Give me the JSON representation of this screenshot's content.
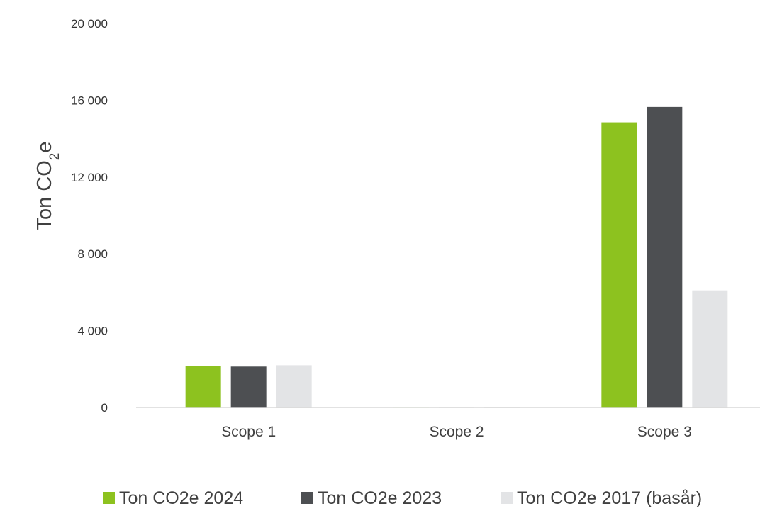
{
  "chart_data": {
    "type": "bar",
    "title": "",
    "xlabel": "",
    "ylabel": "Ton CO2e",
    "ylabel_parts": {
      "main": "Ton CO",
      "sub": "2",
      "tail": "e"
    },
    "categories": [
      "Scope 1",
      "Scope 2",
      "Scope 3"
    ],
    "series": [
      {
        "name": "Ton CO2e 2024",
        "color": "#8dc21f",
        "values": [
          2150,
          20,
          14850
        ]
      },
      {
        "name": "Ton CO2e 2023",
        "color": "#4d4f52",
        "values": [
          2130,
          20,
          15650
        ]
      },
      {
        "name": "Ton CO2e 2017 (basår)",
        "color": "#e3e4e6",
        "values": [
          2200,
          30,
          6100
        ]
      }
    ],
    "ylim": [
      0,
      20000
    ],
    "yticks": [
      0,
      4000,
      8000,
      12000,
      16000,
      20000
    ],
    "ytick_labels": [
      "0",
      "4 000",
      "8 000",
      "12 000",
      "16 000",
      "20 000"
    ],
    "grid": false,
    "legend_position": "bottom"
  }
}
